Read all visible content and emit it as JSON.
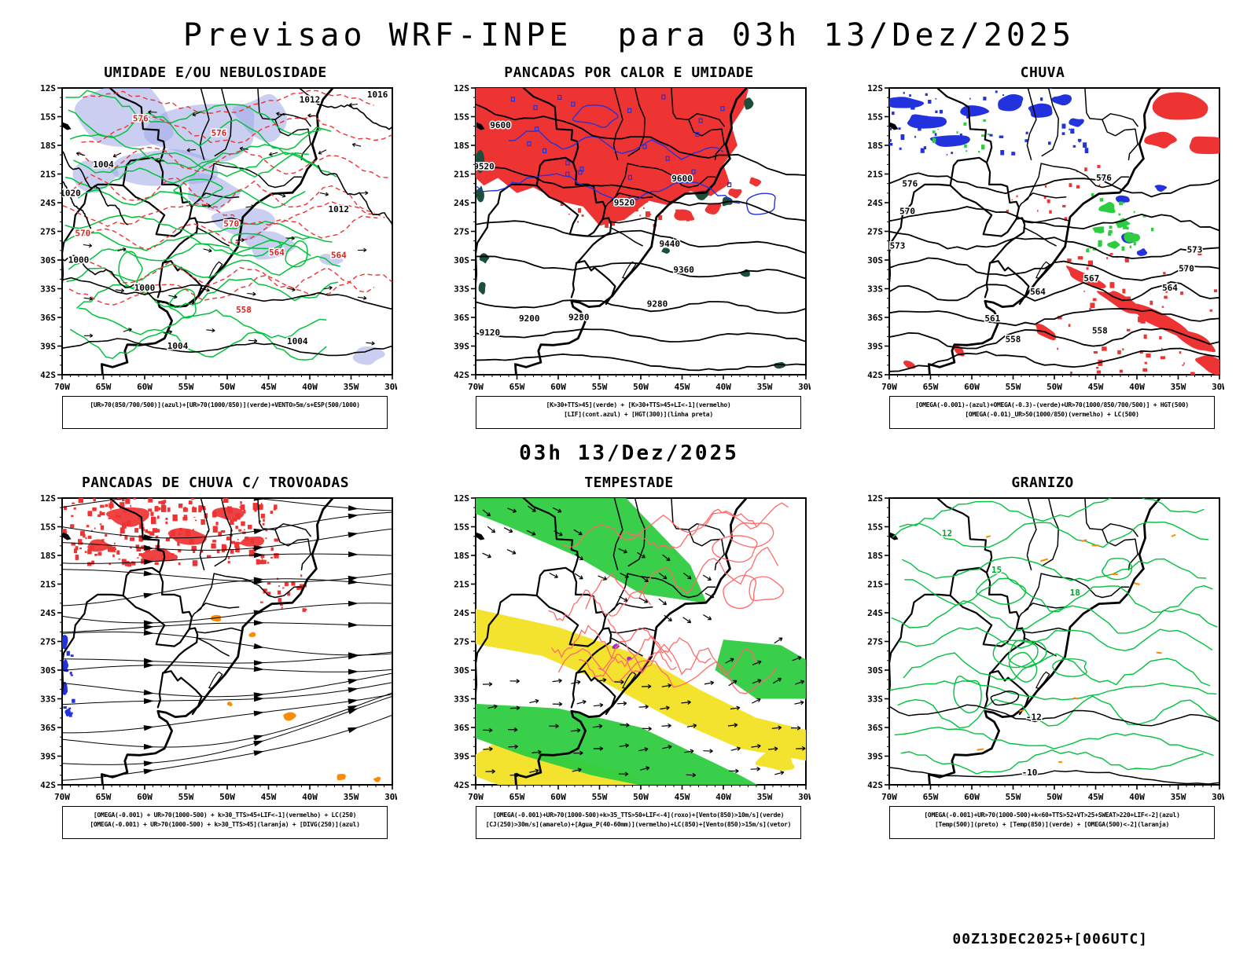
{
  "page": {
    "title": "Previsao WRF-INPE  para 03h 13/Dez/2025",
    "center_date": "03h 13/Dez/2025",
    "footer": "00Z13DEC2025+[006UTC]"
  },
  "axes": {
    "lat_labels": [
      "12S",
      "15S",
      "18S",
      "21S",
      "24S",
      "27S",
      "30S",
      "33S",
      "36S",
      "39S",
      "42S"
    ],
    "lon_labels": [
      "70W",
      "65W",
      "60W",
      "55W",
      "50W",
      "45W",
      "40W",
      "35W",
      "30W"
    ]
  },
  "colors": {
    "red": "#ee3333",
    "blue": "#2233dd",
    "green": "#00c23c",
    "green2": "#2ecc40",
    "dark_green": "#1b4f3a",
    "lavender": "#9fa8e6",
    "yellow": "#f3e32e",
    "orange": "#ff8a00",
    "purple": "#9932cc"
  },
  "panels": [
    {
      "id": "umidade",
      "title": "UMIDADE E/OU NEBULOSIDADE",
      "caption1": "[UR>70(850/700/500)](azul)+[UR>70(1000/850)](verde)+VENTO>5m/s+ESP(500/1000)",
      "caption2": "",
      "labels": {
        "red": [
          "576",
          "576",
          "570",
          "570",
          "564",
          "558",
          "564"
        ],
        "black": [
          "1020",
          "1004",
          "1000",
          "1000",
          "1004",
          "1004",
          "1012",
          "1016",
          "1012"
        ]
      }
    },
    {
      "id": "pancadas-calor",
      "title": "PANCADAS POR CALOR E UMIDADE",
      "caption1": "[K>30+TTS>45](verde) + [K>30+TTS>45+LI<-1](vermelho)",
      "caption2": "[LIF](cont.azul) + [HGT(300)](linha preta)",
      "labels": {
        "black": [
          "9600",
          "9600",
          "9520",
          "9520",
          "9440",
          "9360",
          "9280",
          "9280",
          "9200",
          "9120"
        ]
      }
    },
    {
      "id": "chuva",
      "title": "CHUVA",
      "caption1": "[OMEGA(-0.001)-(azul)+OMEGA(-0.3)-(verde)+UR>70(1000/850/700/500)] + HGT(500)",
      "caption2": "[OMEGA(-0.01)_UR>50(1000/850)(vermelho) + LC(500)",
      "labels": {
        "black": [
          "576",
          "576",
          "573",
          "573",
          "570",
          "570",
          "567",
          "564",
          "564",
          "561",
          "558",
          "558"
        ]
      }
    },
    {
      "id": "trovoadas",
      "title": "PANCADAS DE CHUVA C/ TROVOADAS",
      "caption1": "[OMEGA(-0.001) + UR>70(1000-500) + k>30_TTS>45+LIF<-1](vermelho) + LC(250)",
      "caption2": "[OMEGA(-0.001) + UR>70(1000-500) + k>30_TTS>45](laranja) + [DIVG(250)](azul)",
      "labels": {}
    },
    {
      "id": "tempestade",
      "title": "TEMPESTADE",
      "caption1": "[OMEGA(-0.001)+UR>70(1000-500)+k>35_TTS>50+LIF<-4](roxo)+[Vento(850)>10m/s](verde)",
      "caption2": "[CJ(250)>30m/s](amarelo)+[Agua_P(40-60mm)](vermelho)+LC(850)+[Vento(850)>15m/s](vetor)",
      "labels": {}
    },
    {
      "id": "granizo",
      "title": "GRANIZO",
      "caption1": "[OMEGA(-0.001)+UR>70(1000-500)+k<60+TTS>52+VT>25+SWEAT>220+LIF<-2](azul)",
      "caption2": "[Temp(500)](preto) + [Temp(850)](verde) + [OMEGA(500)<-2](laranja)",
      "labels": {
        "black": [
          "-12",
          "-10"
        ],
        "green": [
          "12",
          "15",
          "18"
        ]
      }
    }
  ]
}
